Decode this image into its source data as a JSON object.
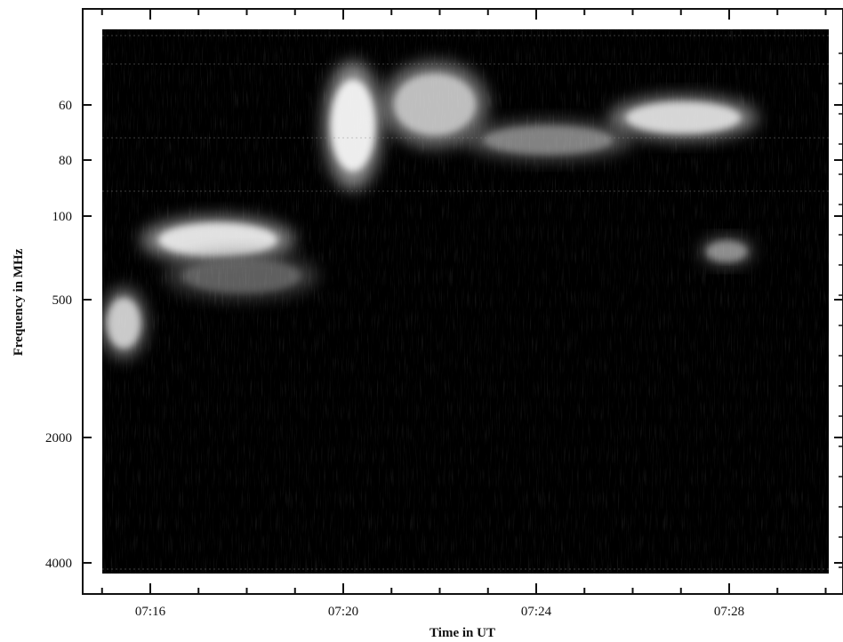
{
  "chart_data": {
    "type": "heatmap",
    "title": "",
    "xlabel": "Time in UT",
    "ylabel": "Frequency in MHz",
    "x_ticks": [
      "07:16",
      "07:20",
      "07:24",
      "07:28"
    ],
    "x_tick_minutes": [
      16,
      20,
      24,
      28
    ],
    "x_range_minutes": [
      15,
      30.5
    ],
    "y_ticks": [
      "60",
      "80",
      "100",
      "500",
      "2000",
      "4000"
    ],
    "y_tick_values": [
      60,
      80,
      100,
      500,
      2000,
      4000
    ],
    "colormap": "grayscale (black = low intensity, white = high intensity)",
    "background_color": "#000000",
    "grid": false,
    "features": [
      {
        "minutes": [
          19.6,
          20.8
        ],
        "freq_mhz": [
          40,
          90
        ],
        "intensity": 1.0
      },
      {
        "minutes": [
          20.8,
          23.0
        ],
        "freq_mhz": [
          40,
          75
        ],
        "intensity": 0.8
      },
      {
        "minutes": [
          25.5,
          28.6
        ],
        "freq_mhz": [
          55,
          72
        ],
        "intensity": 0.9
      },
      {
        "minutes": [
          22.5,
          26.0
        ],
        "freq_mhz": [
          65,
          80
        ],
        "intensity": 0.55
      },
      {
        "minutes": [
          15.8,
          19.0
        ],
        "freq_mhz": [
          100,
          250
        ],
        "intensity": 0.95
      },
      {
        "minutes": [
          16.3,
          19.5
        ],
        "freq_mhz": [
          200,
          500
        ],
        "intensity": 0.4
      },
      {
        "minutes": [
          15.0,
          15.9
        ],
        "freq_mhz": [
          400,
          900
        ],
        "intensity": 0.85
      },
      {
        "minutes": [
          27.4,
          28.5
        ],
        "freq_mhz": [
          150,
          260
        ],
        "intensity": 0.6
      }
    ]
  }
}
